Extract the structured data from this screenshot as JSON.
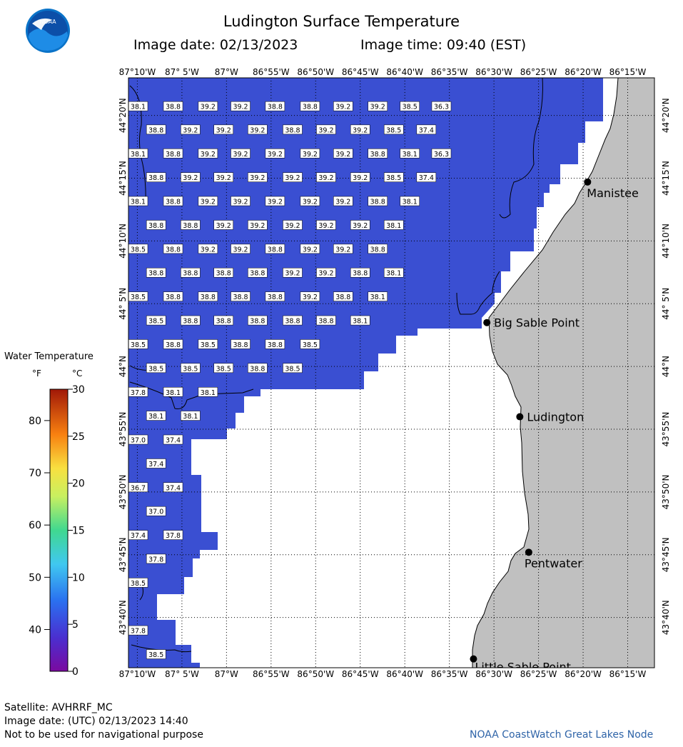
{
  "header": {
    "title": "Ludington Surface Temperature",
    "image_date": "Image date: 02/13/2023",
    "image_time": "Image time: 09:40 (EST)"
  },
  "logo": {
    "text": "NOAA"
  },
  "colors": {
    "water": "#3a4fd2",
    "land": "#c0c0c0",
    "cloud": "#ffffff",
    "credit": "#2f64a8"
  },
  "map": {
    "lon_range": [
      -87.1833,
      -86.2
    ],
    "lat_range": [
      43.6,
      44.3833
    ],
    "lon_ticks": [
      "87°10'W",
      "87° 5'W",
      "87°W",
      "86°55'W",
      "86°50'W",
      "86°45'W",
      "86°40'W",
      "86°35'W",
      "86°30'W",
      "86°25'W",
      "86°20'W",
      "86°15'W"
    ],
    "lat_ticks": [
      "43°40'N",
      "43°45'N",
      "43°50'N",
      "43°55'N",
      "44°N",
      "44° 5'N",
      "44°10'N",
      "44°15'N",
      "44°20'N"
    ],
    "places": [
      {
        "name": "Manistee",
        "lon": -86.325,
        "lat": 44.245
      },
      {
        "name": "Big Sable Point",
        "lon": -86.5133,
        "lat": 44.0583
      },
      {
        "name": "Ludington",
        "lon": -86.4517,
        "lat": 43.9333
      },
      {
        "name": "Pentwater",
        "lon": -86.435,
        "lat": 43.7533
      },
      {
        "name": "Little Sable Point",
        "lon": -86.5383,
        "lat": 43.6117
      }
    ],
    "temp_rows": [
      {
        "lat": 44.3452,
        "cells": [
          [
            "38.1",
            -87.1833
          ],
          [
            "38.8",
            -87.1179
          ],
          [
            "39.2",
            -87.0527
          ],
          [
            "39.2",
            -86.9918
          ],
          [
            "38.8",
            -86.9273
          ],
          [
            "38.8",
            -86.8619
          ],
          [
            "39.2",
            -86.8
          ],
          [
            "39.2",
            -86.7354
          ],
          [
            "38.5",
            -86.6754
          ],
          [
            "36.3",
            -86.6163
          ]
        ]
      },
      {
        "lat": 44.3142,
        "cells": [
          [
            "38.8",
            -87.1497
          ],
          [
            "39.2",
            -87.0854
          ],
          [
            "39.2",
            -87.0236
          ],
          [
            "39.2",
            -86.96
          ],
          [
            "38.8",
            -86.8945
          ],
          [
            "39.2",
            -86.8318
          ],
          [
            "39.2",
            -86.7681
          ],
          [
            "38.5",
            -86.7054
          ],
          [
            "37.4",
            -86.6445
          ]
        ]
      },
      {
        "lat": 44.2825,
        "cells": [
          [
            "38.1",
            -87.1833
          ],
          [
            "38.8",
            -87.1179
          ],
          [
            "39.2",
            -87.0527
          ],
          [
            "39.2",
            -86.9918
          ],
          [
            "39.2",
            -86.9273
          ],
          [
            "39.2",
            -86.8619
          ],
          [
            "39.2",
            -86.8
          ],
          [
            "38.8",
            -86.7354
          ],
          [
            "38.1",
            -86.6754
          ],
          [
            "36.3",
            -86.6163
          ]
        ]
      },
      {
        "lat": 44.2508,
        "cells": [
          [
            "38.8",
            -87.1497
          ],
          [
            "39.2",
            -87.0854
          ],
          [
            "39.2",
            -87.0236
          ],
          [
            "39.2",
            -86.96
          ],
          [
            "39.2",
            -86.8945
          ],
          [
            "39.2",
            -86.8318
          ],
          [
            "39.2",
            -86.7681
          ],
          [
            "38.5",
            -86.7054
          ],
          [
            "37.4",
            -86.6445
          ]
        ]
      },
      {
        "lat": 44.2192,
        "cells": [
          [
            "38.1",
            -87.1833
          ],
          [
            "38.8",
            -87.1179
          ],
          [
            "39.2",
            -87.0527
          ],
          [
            "39.2",
            -86.9918
          ],
          [
            "39.2",
            -86.9273
          ],
          [
            "39.2",
            -86.8619
          ],
          [
            "39.2",
            -86.8
          ],
          [
            "38.8",
            -86.7354
          ],
          [
            "38.1",
            -86.6754
          ]
        ]
      },
      {
        "lat": 44.1875,
        "cells": [
          [
            "38.8",
            -87.1497
          ],
          [
            "38.8",
            -87.0854
          ],
          [
            "39.2",
            -87.0236
          ],
          [
            "39.2",
            -86.96
          ],
          [
            "39.2",
            -86.8945
          ],
          [
            "39.2",
            -86.8318
          ],
          [
            "39.2",
            -86.7681
          ],
          [
            "38.1",
            -86.7054
          ]
        ]
      },
      {
        "lat": 44.1558,
        "cells": [
          [
            "38.5",
            -87.1833
          ],
          [
            "38.8",
            -87.1179
          ],
          [
            "39.2",
            -87.0527
          ],
          [
            "39.2",
            -86.9918
          ],
          [
            "38.8",
            -86.9273
          ],
          [
            "39.2",
            -86.8619
          ],
          [
            "39.2",
            -86.8
          ],
          [
            "38.8",
            -86.7354
          ]
        ]
      },
      {
        "lat": 44.1242,
        "cells": [
          [
            "38.8",
            -87.1497
          ],
          [
            "38.8",
            -87.0854
          ],
          [
            "38.8",
            -87.0236
          ],
          [
            "38.8",
            -86.96
          ],
          [
            "39.2",
            -86.8945
          ],
          [
            "39.2",
            -86.8318
          ],
          [
            "38.8",
            -86.7681
          ],
          [
            "38.1",
            -86.7054
          ]
        ]
      },
      {
        "lat": 44.0925,
        "cells": [
          [
            "38.5",
            -87.1833
          ],
          [
            "38.8",
            -87.1179
          ],
          [
            "38.8",
            -87.0527
          ],
          [
            "38.8",
            -86.9918
          ],
          [
            "38.8",
            -86.9273
          ],
          [
            "39.2",
            -86.8619
          ],
          [
            "38.8",
            -86.8
          ],
          [
            "38.1",
            -86.7354
          ]
        ]
      },
      {
        "lat": 44.0608,
        "cells": [
          [
            "38.5",
            -87.1497
          ],
          [
            "38.8",
            -87.0854
          ],
          [
            "38.8",
            -87.0236
          ],
          [
            "38.8",
            -86.96
          ],
          [
            "38.8",
            -86.8945
          ],
          [
            "38.8",
            -86.8318
          ],
          [
            "38.1",
            -86.7681
          ]
        ]
      },
      {
        "lat": 44.0292,
        "cells": [
          [
            "38.5",
            -87.1833
          ],
          [
            "38.8",
            -87.1179
          ],
          [
            "38.5",
            -87.0527
          ],
          [
            "38.8",
            -86.9918
          ],
          [
            "38.8",
            -86.9273
          ],
          [
            "38.5",
            -86.8619
          ]
        ]
      },
      {
        "lat": 43.9975,
        "cells": [
          [
            "38.5",
            -87.1497
          ],
          [
            "38.5",
            -87.0854
          ],
          [
            "38.5",
            -87.0236
          ],
          [
            "38.8",
            -86.96
          ],
          [
            "38.5",
            -86.8945
          ]
        ]
      },
      {
        "lat": 43.9658,
        "cells": [
          [
            "37.8",
            -87.1833
          ],
          [
            "38.1",
            -87.1179
          ],
          [
            "38.1",
            -87.0527
          ]
        ]
      },
      {
        "lat": 43.9342,
        "cells": [
          [
            "38.1",
            -87.1497
          ],
          [
            "38.1",
            -87.0854
          ]
        ]
      },
      {
        "lat": 43.9025,
        "cells": [
          [
            "37.0",
            -87.1833
          ],
          [
            "37.4",
            -87.1179
          ]
        ]
      },
      {
        "lat": 43.8708,
        "cells": [
          [
            "37.4",
            -87.1497
          ]
        ]
      },
      {
        "lat": 43.8392,
        "cells": [
          [
            "36.7",
            -87.1833
          ],
          [
            "37.4",
            -87.1179
          ]
        ]
      },
      {
        "lat": 43.8075,
        "cells": [
          [
            "37.0",
            -87.1497
          ]
        ]
      },
      {
        "lat": 43.7758,
        "cells": [
          [
            "37.4",
            -87.1833
          ],
          [
            "37.8",
            -87.1179
          ]
        ]
      },
      {
        "lat": 43.7442,
        "cells": [
          [
            "37.8",
            -87.1497
          ]
        ]
      },
      {
        "lat": 43.7125,
        "cells": [
          [
            "38.5",
            -87.1833
          ]
        ]
      },
      {
        "lat": 43.6492,
        "cells": [
          [
            "37.8",
            -87.1833
          ]
        ]
      },
      {
        "lat": 43.6175,
        "cells": [
          [
            "38.5",
            -87.1497
          ]
        ]
      }
    ]
  },
  "legend": {
    "title": "Water Temperature",
    "unit_f": "°F",
    "unit_c": "°C",
    "f_ticks": [
      "40",
      "50",
      "60",
      "70",
      "80"
    ],
    "f_values": [
      40,
      50,
      60,
      70,
      80
    ],
    "c_ticks": [
      "0",
      "5",
      "10",
      "15",
      "20",
      "25",
      "30"
    ],
    "c_values": [
      0,
      5,
      10,
      15,
      20,
      25,
      30
    ]
  },
  "footer": {
    "satellite": "Satellite: AVHRRF_MC",
    "utc_date": "Image date: (UTC) 02/13/2023  14:40",
    "disclaimer": "Not to be used for navigational purpose",
    "credit": "NOAA CoastWatch Great Lakes Node"
  }
}
